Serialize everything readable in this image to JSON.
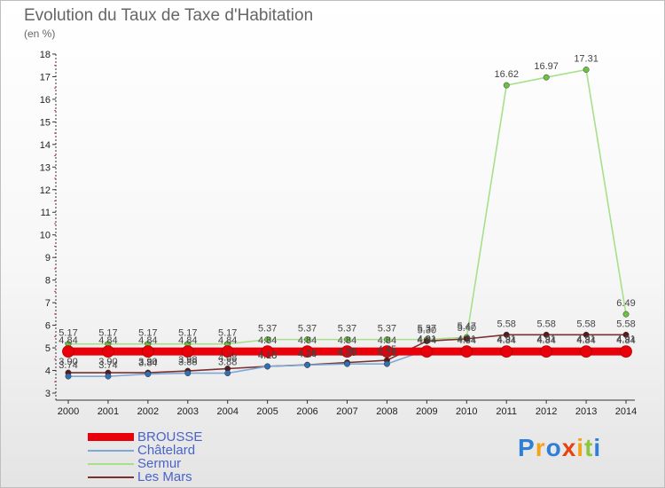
{
  "chart_data": {
    "type": "line",
    "title": "Evolution du Taux de Taxe d'Habitation",
    "ylabel": "(en %)",
    "xlabel": "",
    "ylim": [
      3,
      18
    ],
    "yticks": [
      "3",
      "4",
      "5",
      "6",
      "7",
      "8",
      "9",
      "10",
      "11",
      "12",
      "13",
      "14",
      "15",
      "16",
      "17",
      "18"
    ],
    "categories": [
      "2000",
      "2001",
      "2002",
      "2003",
      "2004",
      "2005",
      "2006",
      "2007",
      "2008",
      "2009",
      "2010",
      "2011",
      "2012",
      "2013",
      "2014"
    ],
    "series": [
      {
        "name": "BROUSSE",
        "color": "#e8000b",
        "marker": "#e8000b",
        "values": [
          4.84,
          4.84,
          4.84,
          4.84,
          4.84,
          4.84,
          4.84,
          4.84,
          4.84,
          4.84,
          4.84,
          4.84,
          4.84,
          4.84,
          4.84
        ],
        "labels": [
          "4.84",
          "4.84",
          "4.84",
          "4.84",
          "4.84",
          "4.84",
          "4.84",
          "4.84",
          "4.84",
          "4.84",
          "4.84",
          "4.84",
          "4.84",
          "4.84",
          "4.84"
        ]
      },
      {
        "name": "Châtelard",
        "color": "#7ea8d6",
        "marker": "#2f6fb3",
        "values": [
          3.74,
          3.74,
          3.84,
          3.88,
          3.88,
          4.18,
          4.24,
          4.29,
          4.29,
          4.91,
          4.91,
          4.91,
          4.91,
          4.91,
          4.91
        ],
        "labels": [
          "3.74",
          "3.74",
          "3.84",
          "3.88",
          "3.88",
          "4.18",
          "4.24",
          "4.29",
          "4.29",
          "4.91",
          "4.91",
          "4.91",
          "4.91",
          "4.91",
          "4.91"
        ]
      },
      {
        "name": "Sermur",
        "color": "#a6e08a",
        "marker": "#6cc242",
        "values": [
          5.17,
          5.17,
          5.17,
          5.17,
          5.17,
          5.37,
          5.37,
          5.37,
          5.37,
          5.37,
          5.47,
          16.62,
          16.97,
          17.31,
          6.49
        ],
        "labels": [
          "5.17",
          "5.17",
          "5.17",
          "5.17",
          "5.17",
          "5.37",
          "5.37",
          "5.37",
          "5.37",
          "5.37",
          "5.47",
          "16.62",
          "16.97",
          "17.31",
          "6.49"
        ]
      },
      {
        "name": "Les Mars",
        "color": "#7a3030",
        "marker": "#5a1a1a",
        "values": [
          3.9,
          3.9,
          3.9,
          3.98,
          4.08,
          4.18,
          4.25,
          4.35,
          4.45,
          5.3,
          5.4,
          5.58,
          5.58,
          5.58,
          5.58
        ],
        "labels": [
          "3.90",
          "3.90",
          "3.90",
          "3.98",
          "4.08",
          "4.18",
          "4.25",
          "4.35",
          "4.45",
          "5.30",
          "5.40",
          "5.58",
          "5.58",
          "5.58",
          "5.58"
        ]
      }
    ]
  },
  "logo": {
    "letters": [
      "P",
      "r",
      "o",
      "x",
      "i",
      "t",
      "i"
    ],
    "colors": [
      "#2f7fd6",
      "#f4a21a",
      "#2f7fd6",
      "#e8420f",
      "#f4a21a",
      "#8cc63f",
      "#2f7fd6"
    ]
  }
}
